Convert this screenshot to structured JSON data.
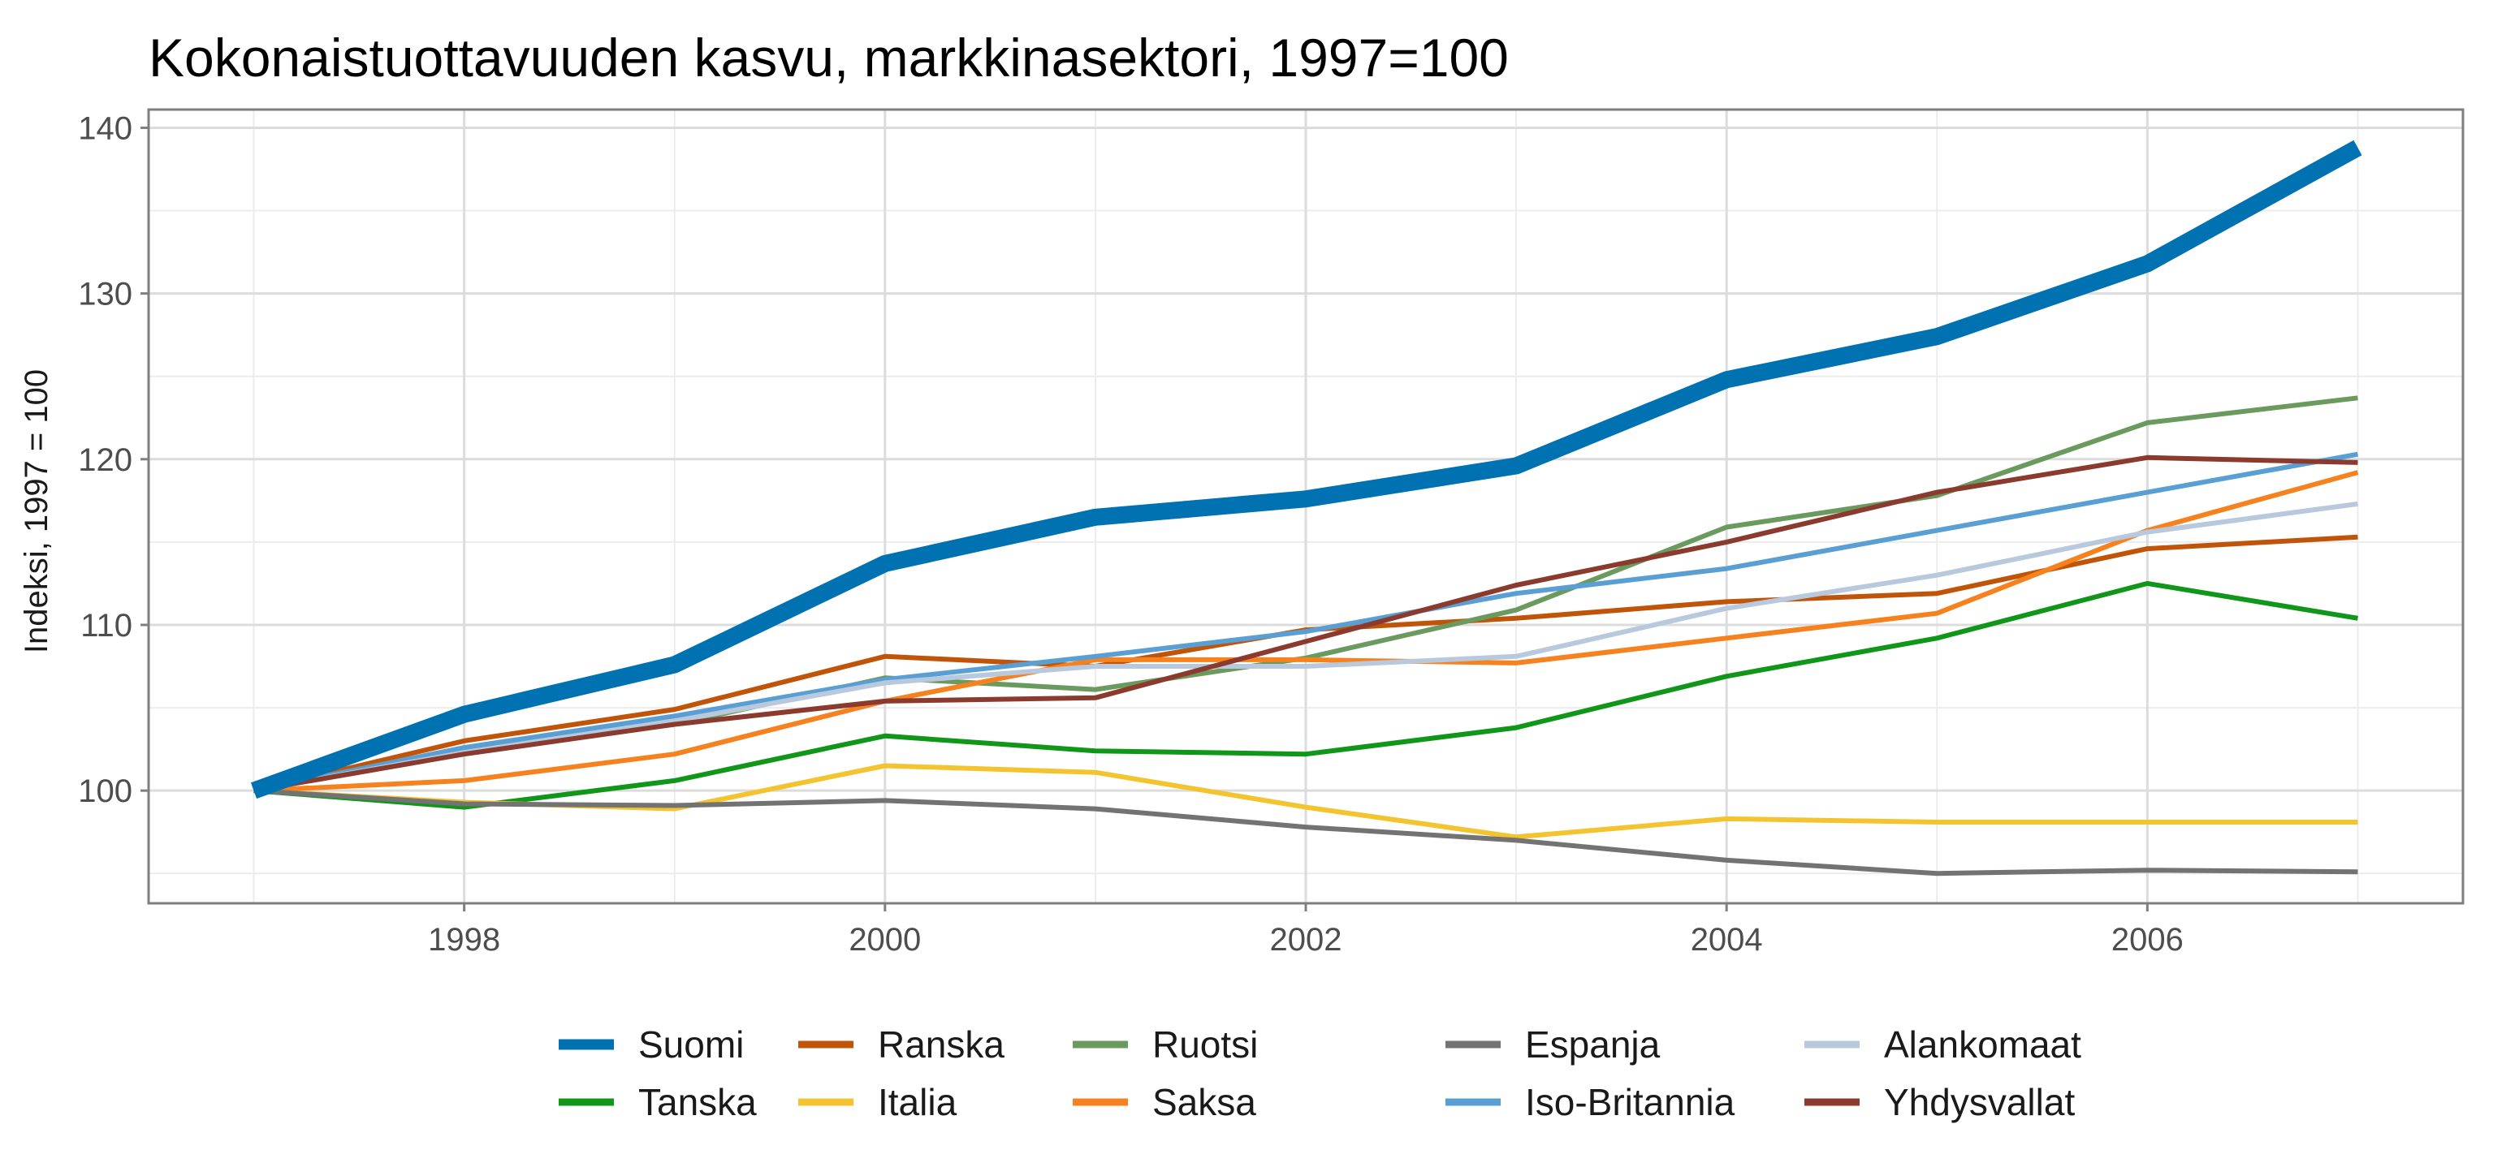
{
  "chart_data": {
    "type": "line",
    "title": "Kokonaistuottavuuden kasvu, markkinasektori, 1997=100",
    "xlabel": "",
    "ylabel": "Indeksi, 1997 = 100",
    "x": [
      1997,
      1998,
      1999,
      2000,
      2001,
      2002,
      2003,
      2004,
      2005,
      2006,
      2007
    ],
    "xlim": [
      1996.5,
      2007.5
    ],
    "ylim": [
      93.2,
      141.1
    ],
    "x_ticks": [
      1998,
      2000,
      2002,
      2004,
      2006
    ],
    "y_ticks": [
      100,
      110,
      120,
      130,
      140
    ],
    "grid": true,
    "legend_position": "bottom",
    "series": [
      {
        "name": "Suomi",
        "color": "#0072B2",
        "emphasis": true,
        "values": [
          100,
          104.6,
          107.6,
          113.7,
          116.5,
          117.6,
          119.6,
          124.8,
          127.4,
          131.8,
          138.8
        ]
      },
      {
        "name": "Tanska",
        "color": "#109618",
        "values": [
          100,
          99.0,
          100.6,
          103.3,
          102.4,
          102.2,
          103.8,
          106.9,
          109.2,
          112.5,
          110.4
        ]
      },
      {
        "name": "Ranska",
        "color": "#C0550A",
        "values": [
          100,
          103.0,
          104.9,
          108.1,
          107.5,
          109.7,
          110.4,
          111.4,
          111.9,
          114.6,
          115.3
        ]
      },
      {
        "name": "Italia",
        "color": "#F4C430",
        "values": [
          100,
          99.3,
          98.9,
          101.5,
          101.1,
          99.0,
          97.2,
          98.3,
          98.1,
          98.1,
          98.1
        ]
      },
      {
        "name": "Ruotsi",
        "color": "#6B9A5F",
        "values": [
          100,
          102.4,
          104.0,
          106.8,
          106.1,
          108.0,
          110.9,
          115.9,
          117.8,
          122.2,
          123.7
        ]
      },
      {
        "name": "Saksa",
        "color": "#F5821F",
        "values": [
          100,
          100.6,
          102.2,
          105.4,
          107.9,
          107.9,
          107.7,
          109.2,
          110.7,
          115.7,
          119.2
        ]
      },
      {
        "name": "Espanja",
        "color": "#737373",
        "values": [
          100,
          99.2,
          99.1,
          99.4,
          98.9,
          97.8,
          97.0,
          95.8,
          95.0,
          95.2,
          95.1
        ]
      },
      {
        "name": "Iso-Britannia",
        "color": "#5A9FD4",
        "values": [
          100,
          102.6,
          104.5,
          106.7,
          108.1,
          109.6,
          111.9,
          113.4,
          115.7,
          118.0,
          120.3
        ]
      },
      {
        "name": "Alankomaat",
        "color": "#B8C9DE",
        "values": [
          100,
          102.3,
          104.2,
          106.5,
          107.5,
          107.5,
          108.1,
          111.0,
          113.0,
          115.6,
          117.3
        ]
      },
      {
        "name": "Yhdysvallat",
        "color": "#8B3A2E",
        "values": [
          100,
          102.2,
          104.0,
          105.4,
          105.6,
          109.0,
          112.4,
          115.0,
          118.0,
          120.1,
          119.8
        ]
      }
    ]
  }
}
